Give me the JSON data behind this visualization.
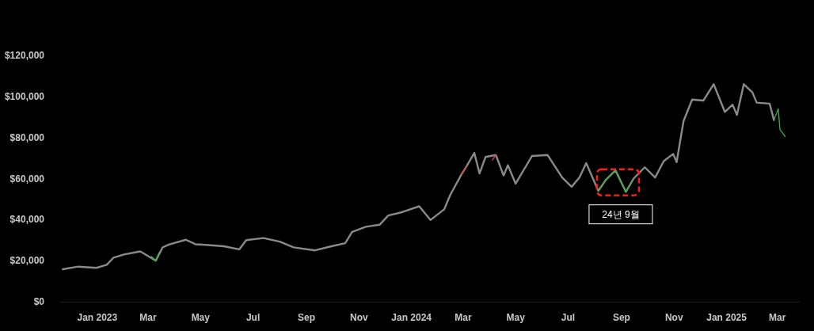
{
  "chart_data": {
    "type": "line",
    "grid": false,
    "xlim": [
      "2022-11-18",
      "2025-03-27"
    ],
    "xticks": [
      {
        "value": "2023-01-01",
        "label": "Jan 2023"
      },
      {
        "value": "2023-03-01",
        "label": "Mar"
      },
      {
        "value": "2023-05-01",
        "label": "May"
      },
      {
        "value": "2023-07-01",
        "label": "Jul"
      },
      {
        "value": "2023-09-01",
        "label": "Sep"
      },
      {
        "value": "2023-11-01",
        "label": "Nov"
      },
      {
        "value": "2024-01-01",
        "label": "Jan 2024"
      },
      {
        "value": "2024-03-01",
        "label": "Mar"
      },
      {
        "value": "2024-05-01",
        "label": "May"
      },
      {
        "value": "2024-07-01",
        "label": "Jul"
      },
      {
        "value": "2024-09-01",
        "label": "Sep"
      },
      {
        "value": "2024-11-01",
        "label": "Nov"
      },
      {
        "value": "2025-01-01",
        "label": "Jan 2025"
      },
      {
        "value": "2025-03-01",
        "label": "Mar"
      }
    ],
    "ylim": [
      0,
      120000
    ],
    "yticks": [
      {
        "value": 0,
        "label": "$0"
      },
      {
        "value": 20000,
        "label": "$20,000"
      },
      {
        "value": 40000,
        "label": "$40,000"
      },
      {
        "value": 60000,
        "label": "$60,000"
      },
      {
        "value": 80000,
        "label": "$80,000"
      },
      {
        "value": 100000,
        "label": "$100,000"
      },
      {
        "value": 120000,
        "label": "$120,000"
      }
    ],
    "annotations": [
      {
        "text": "24년 9월",
        "x": "2024-09-01",
        "y": 58000
      }
    ],
    "series": [
      {
        "color": "#8a8a8a",
        "x": [
          "2022-11-22",
          "2022-12-10",
          "2022-12-31",
          "2023-01-12",
          "2023-01-20",
          "2023-02-01",
          "2023-02-20",
          "2023-03-10",
          "2023-03-18",
          "2023-03-25",
          "2023-04-14",
          "2023-04-25",
          "2023-05-10",
          "2023-05-28",
          "2023-06-15",
          "2023-06-23",
          "2023-07-13",
          "2023-08-01",
          "2023-08-17",
          "2023-09-11",
          "2023-09-30",
          "2023-10-16",
          "2023-10-24",
          "2023-11-09",
          "2023-11-25",
          "2023-12-05",
          "2023-12-20",
          "2024-01-10",
          "2024-01-23",
          "2024-02-08",
          "2024-02-15",
          "2024-02-28",
          "2024-03-05",
          "2024-03-14",
          "2024-03-20",
          "2024-03-27",
          "2024-04-08",
          "2024-04-17",
          "2024-04-22",
          "2024-05-01",
          "2024-05-20",
          "2024-06-07",
          "2024-06-24",
          "2024-07-05",
          "2024-07-14",
          "2024-07-22",
          "2024-08-05",
          "2024-08-14",
          "2024-08-25",
          "2024-09-06",
          "2024-09-15",
          "2024-09-28",
          "2024-10-10",
          "2024-10-20",
          "2024-10-31",
          "2024-11-04",
          "2024-11-12",
          "2024-11-22",
          "2024-12-05",
          "2024-12-17",
          "2024-12-30",
          "2025-01-08",
          "2025-01-13",
          "2025-01-21",
          "2025-01-31",
          "2025-02-05",
          "2025-02-20",
          "2025-02-25"
        ],
        "values": [
          15800,
          17100,
          16500,
          18000,
          21500,
          23000,
          24500,
          20000,
          26500,
          27800,
          30200,
          28000,
          27600,
          27000,
          25500,
          30000,
          31000,
          29300,
          26500,
          25000,
          27000,
          28500,
          34000,
          36500,
          37500,
          42000,
          43500,
          46500,
          39800,
          45000,
          52000,
          62000,
          66000,
          72500,
          62500,
          70500,
          71500,
          61500,
          66500,
          57500,
          71000,
          71500,
          60500,
          56000,
          60500,
          67500,
          54000,
          59500,
          64000,
          53500,
          60000,
          65500,
          60500,
          68500,
          72000,
          68000,
          88000,
          98500,
          98000,
          106000,
          92500,
          96000,
          91000,
          106000,
          102000,
          97000,
          96500,
          88500
        ]
      },
      {
        "color": "#3cb043",
        "x": [
          "2023-03-05",
          "2023-03-10",
          "2023-03-14"
        ],
        "values": [
          22000,
          20000,
          24000
        ]
      },
      {
        "color": "#3cb043",
        "x": [
          "2024-08-05",
          "2024-08-14",
          "2024-08-25",
          "2024-09-06",
          "2024-09-15"
        ],
        "values": [
          54000,
          59500,
          64000,
          53500,
          60000
        ]
      },
      {
        "color": "#3cb043",
        "x": [
          "2025-02-25",
          "2025-03-02",
          "2025-03-04",
          "2025-03-10"
        ],
        "values": [
          88500,
          94000,
          84000,
          80500
        ]
      },
      {
        "color": "#e04040",
        "x": [
          "2024-02-28",
          "2024-03-05"
        ],
        "values": [
          62000,
          66000
        ]
      },
      {
        "color": "#e04040",
        "x": [
          "2024-04-04",
          "2024-04-08"
        ],
        "values": [
          69000,
          71500
        ]
      }
    ]
  }
}
